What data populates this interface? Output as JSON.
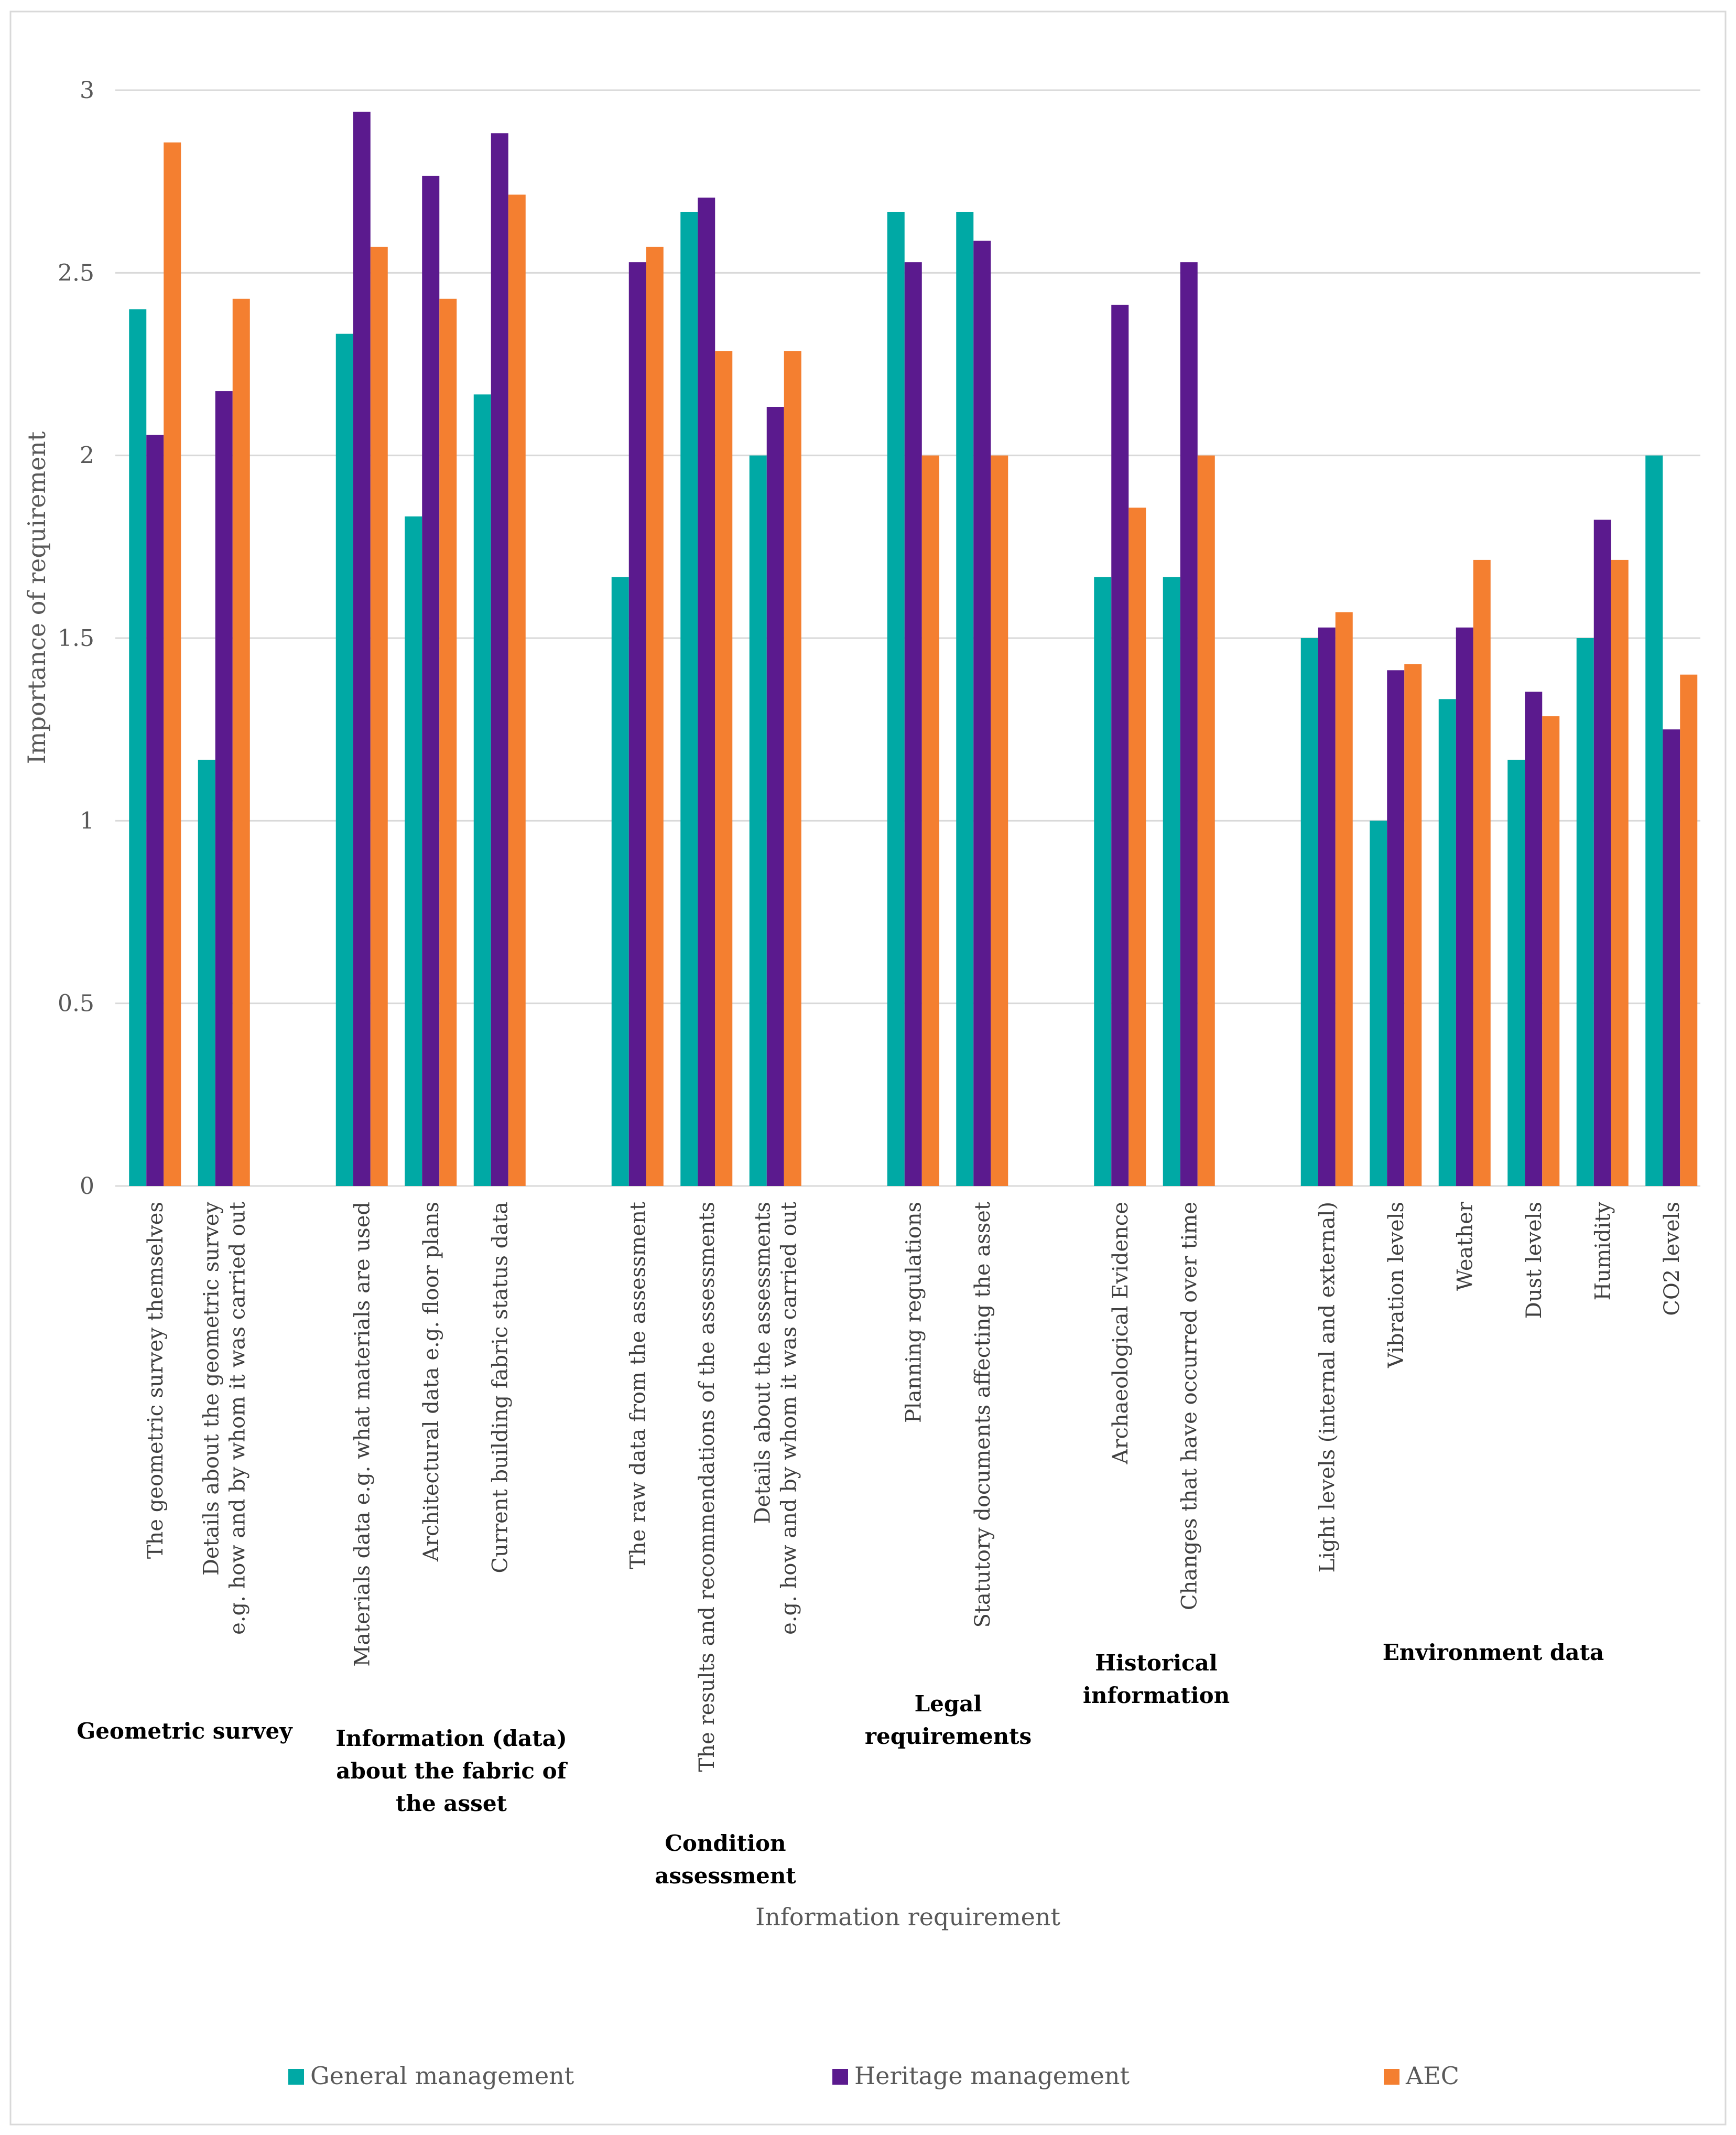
{
  "chart_data": {
    "type": "bar",
    "title": "",
    "xlabel": "Information requirement",
    "ylabel": "Importance of requirement",
    "ylim": [
      0,
      3
    ],
    "yticks": [
      "0",
      "0.5",
      "1",
      "1.5",
      "2",
      "2.5",
      "3"
    ],
    "grid": true,
    "legend_position": "bottom",
    "colors": [
      "#00A9A5",
      "#5B1A8E",
      "#F47F30"
    ],
    "series_names": [
      "General management",
      "Heritage management",
      "AEC"
    ],
    "groups": [
      {
        "name": "Geometric survey",
        "categories": [
          {
            "label": [
              "The geometric survey themselves"
            ],
            "values": [
              2.4,
              2.056,
              2.857
            ]
          },
          {
            "label": [
              "Details about the geometric survey",
              "e.g. how and by whom it was carried out"
            ],
            "values": [
              1.167,
              2.176,
              2.429
            ]
          }
        ]
      },
      {
        "name": "Information (data) about the fabric of the asset",
        "categories": [
          {
            "label": [
              "Materials data e.g. what materials are used"
            ],
            "values": [
              2.333,
              2.941,
              2.571
            ]
          },
          {
            "label": [
              "Architectural data e.g. floor plans"
            ],
            "values": [
              1.833,
              2.765,
              2.429
            ]
          },
          {
            "label": [
              "Current building fabric  status data"
            ],
            "values": [
              2.167,
              2.882,
              2.714
            ]
          }
        ]
      },
      {
        "name": "Condition assessment",
        "categories": [
          {
            "label": [
              "The raw data from the assessment"
            ],
            "values": [
              1.667,
              2.529,
              2.571
            ]
          },
          {
            "label": [
              "The results and recommendations of the assessments"
            ],
            "values": [
              2.667,
              2.706,
              2.286
            ]
          },
          {
            "label": [
              "Details about the assessments",
              "e.g. how and by whom it was carried out"
            ],
            "values": [
              2.0,
              2.133,
              2.286
            ]
          }
        ]
      },
      {
        "name": "Legal requirements",
        "categories": [
          {
            "label": [
              "Planning regulations"
            ],
            "values": [
              2.667,
              2.529,
              2.0
            ]
          },
          {
            "label": [
              "Statutory documents affecting the asset"
            ],
            "values": [
              2.667,
              2.588,
              2.0
            ]
          }
        ]
      },
      {
        "name": "Historical information",
        "categories": [
          {
            "label": [
              "Archaeological Evidence"
            ],
            "values": [
              1.667,
              2.412,
              1.857
            ]
          },
          {
            "label": [
              "Changes that have occurred over time"
            ],
            "values": [
              1.667,
              2.529,
              2.0
            ]
          }
        ]
      },
      {
        "name": "Environment data",
        "categories": [
          {
            "label": [
              "Light levels (internal and external)"
            ],
            "values": [
              1.5,
              1.529,
              1.571
            ]
          },
          {
            "label": [
              "Vibration levels"
            ],
            "values": [
              1.0,
              1.412,
              1.429
            ]
          },
          {
            "label": [
              "Weather"
            ],
            "values": [
              1.333,
              1.529,
              1.714
            ]
          },
          {
            "label": [
              "Dust levels"
            ],
            "values": [
              1.167,
              1.353,
              1.286
            ]
          },
          {
            "label": [
              "Humidity"
            ],
            "values": [
              1.5,
              1.824,
              1.714
            ]
          },
          {
            "label": [
              "CO2 levels"
            ],
            "values": [
              2.0,
              1.25,
              1.4
            ]
          }
        ]
      }
    ]
  }
}
